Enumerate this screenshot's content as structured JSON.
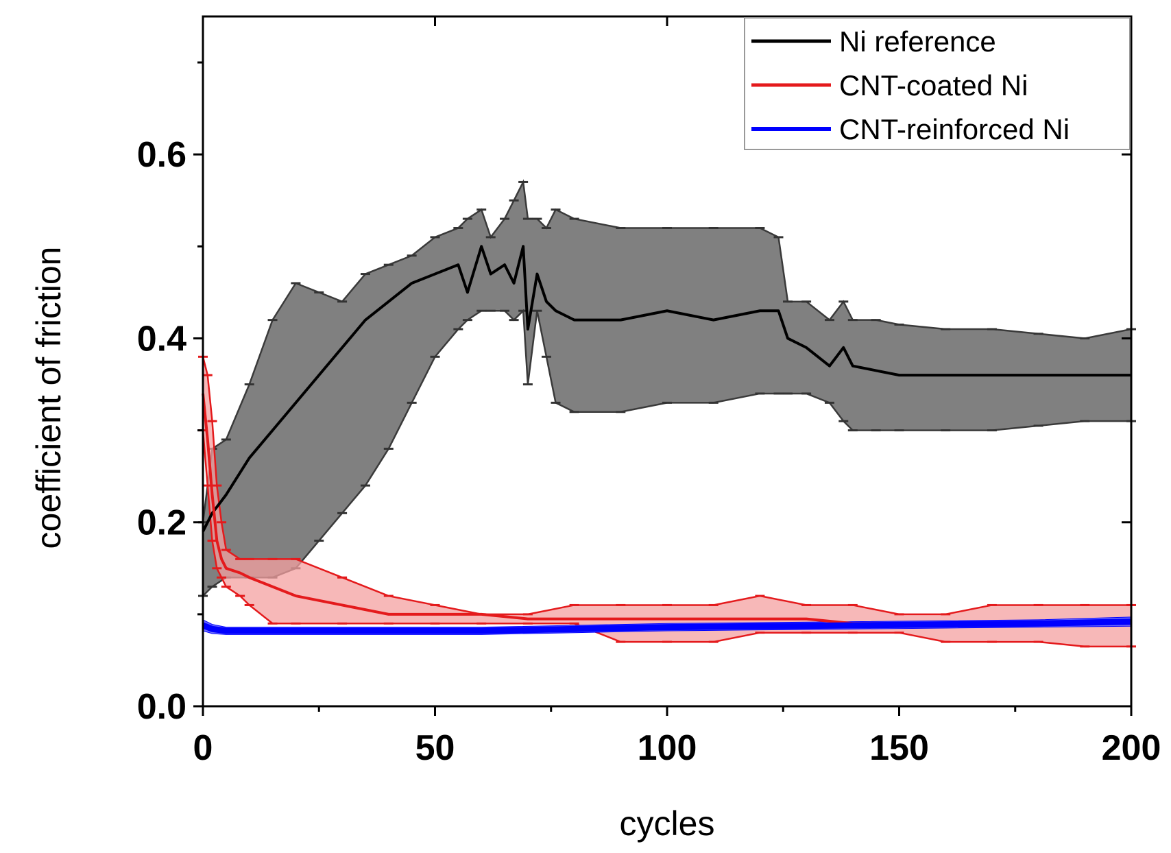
{
  "chart_data": {
    "type": "line",
    "title": "",
    "xlabel": "cycles",
    "ylabel": "coefficient of friction",
    "xlim": [
      0,
      200
    ],
    "ylim": [
      0,
      0.75
    ],
    "xticks": [
      0,
      50,
      100,
      150,
      200
    ],
    "xtick_labels": [
      "0",
      "50",
      "100",
      "150",
      "200"
    ],
    "yticks": [
      0.0,
      0.2,
      0.4,
      0.6
    ],
    "ytick_labels": [
      "0.0",
      "0.2",
      "0.4",
      "0.6"
    ],
    "grid": false,
    "legend_position": "top-right",
    "series": [
      {
        "name": "Ni reference",
        "color": "#000000",
        "band_color": "#808080",
        "x": [
          0,
          2,
          5,
          10,
          15,
          20,
          25,
          30,
          35,
          40,
          45,
          50,
          55,
          57,
          60,
          62,
          65,
          67,
          69,
          70,
          72,
          74,
          76,
          80,
          90,
          100,
          110,
          120,
          124,
          126,
          130,
          135,
          138,
          140,
          145,
          150,
          160,
          170,
          180,
          190,
          200
        ],
        "mean": [
          0.19,
          0.21,
          0.23,
          0.27,
          0.3,
          0.33,
          0.36,
          0.39,
          0.42,
          0.44,
          0.46,
          0.47,
          0.48,
          0.45,
          0.5,
          0.47,
          0.48,
          0.46,
          0.5,
          0.41,
          0.47,
          0.44,
          0.43,
          0.42,
          0.42,
          0.43,
          0.42,
          0.43,
          0.43,
          0.4,
          0.39,
          0.37,
          0.39,
          0.37,
          0.365,
          0.36,
          0.36,
          0.36,
          0.36,
          0.36,
          0.36
        ],
        "upper": [
          0.2,
          0.28,
          0.29,
          0.35,
          0.42,
          0.46,
          0.45,
          0.44,
          0.47,
          0.48,
          0.49,
          0.51,
          0.52,
          0.53,
          0.54,
          0.51,
          0.53,
          0.55,
          0.57,
          0.53,
          0.53,
          0.52,
          0.54,
          0.53,
          0.52,
          0.52,
          0.52,
          0.52,
          0.51,
          0.44,
          0.44,
          0.42,
          0.44,
          0.42,
          0.42,
          0.415,
          0.41,
          0.41,
          0.405,
          0.4,
          0.41
        ],
        "lower": [
          0.12,
          0.13,
          0.14,
          0.14,
          0.14,
          0.15,
          0.18,
          0.21,
          0.24,
          0.28,
          0.33,
          0.38,
          0.41,
          0.42,
          0.43,
          0.43,
          0.43,
          0.42,
          0.43,
          0.35,
          0.43,
          0.38,
          0.33,
          0.32,
          0.32,
          0.33,
          0.33,
          0.34,
          0.34,
          0.34,
          0.34,
          0.33,
          0.31,
          0.3,
          0.3,
          0.3,
          0.3,
          0.3,
          0.305,
          0.31,
          0.31
        ]
      },
      {
        "name": "CNT-coated Ni",
        "color": "#e41a1c",
        "band_color": "#f4a0a0",
        "x": [
          0,
          1,
          2,
          3,
          4,
          5,
          8,
          10,
          15,
          20,
          30,
          40,
          50,
          60,
          70,
          80,
          90,
          100,
          110,
          120,
          130,
          140,
          150,
          160,
          170,
          180,
          190,
          200
        ],
        "mean": [
          0.34,
          0.29,
          0.23,
          0.18,
          0.16,
          0.15,
          0.145,
          0.14,
          0.13,
          0.12,
          0.11,
          0.1,
          0.1,
          0.1,
          0.095,
          0.095,
          0.095,
          0.095,
          0.095,
          0.095,
          0.095,
          0.09,
          0.09,
          0.09,
          0.09,
          0.09,
          0.09,
          0.09
        ],
        "upper": [
          0.38,
          0.36,
          0.31,
          0.24,
          0.2,
          0.17,
          0.16,
          0.16,
          0.16,
          0.16,
          0.14,
          0.12,
          0.11,
          0.1,
          0.1,
          0.11,
          0.11,
          0.11,
          0.11,
          0.12,
          0.11,
          0.11,
          0.1,
          0.1,
          0.11,
          0.11,
          0.11,
          0.11
        ],
        "lower": [
          0.3,
          0.24,
          0.18,
          0.15,
          0.14,
          0.13,
          0.12,
          0.11,
          0.09,
          0.09,
          0.09,
          0.09,
          0.09,
          0.09,
          0.09,
          0.09,
          0.07,
          0.07,
          0.07,
          0.08,
          0.08,
          0.08,
          0.08,
          0.07,
          0.07,
          0.07,
          0.065,
          0.065
        ]
      },
      {
        "name": "CNT-reinforced Ni",
        "color": "#0000ff",
        "band_color": "#6f6fff",
        "x": [
          0,
          2,
          5,
          10,
          20,
          40,
          60,
          80,
          100,
          120,
          140,
          160,
          180,
          200
        ],
        "mean": [
          0.088,
          0.084,
          0.082,
          0.082,
          0.082,
          0.082,
          0.082,
          0.084,
          0.086,
          0.087,
          0.088,
          0.089,
          0.09,
          0.092
        ],
        "upper": [
          0.094,
          0.089,
          0.086,
          0.086,
          0.086,
          0.086,
          0.086,
          0.088,
          0.09,
          0.091,
          0.092,
          0.093,
          0.094,
          0.097
        ],
        "lower": [
          0.082,
          0.079,
          0.078,
          0.078,
          0.078,
          0.078,
          0.078,
          0.08,
          0.082,
          0.083,
          0.084,
          0.085,
          0.086,
          0.087
        ]
      }
    ]
  }
}
